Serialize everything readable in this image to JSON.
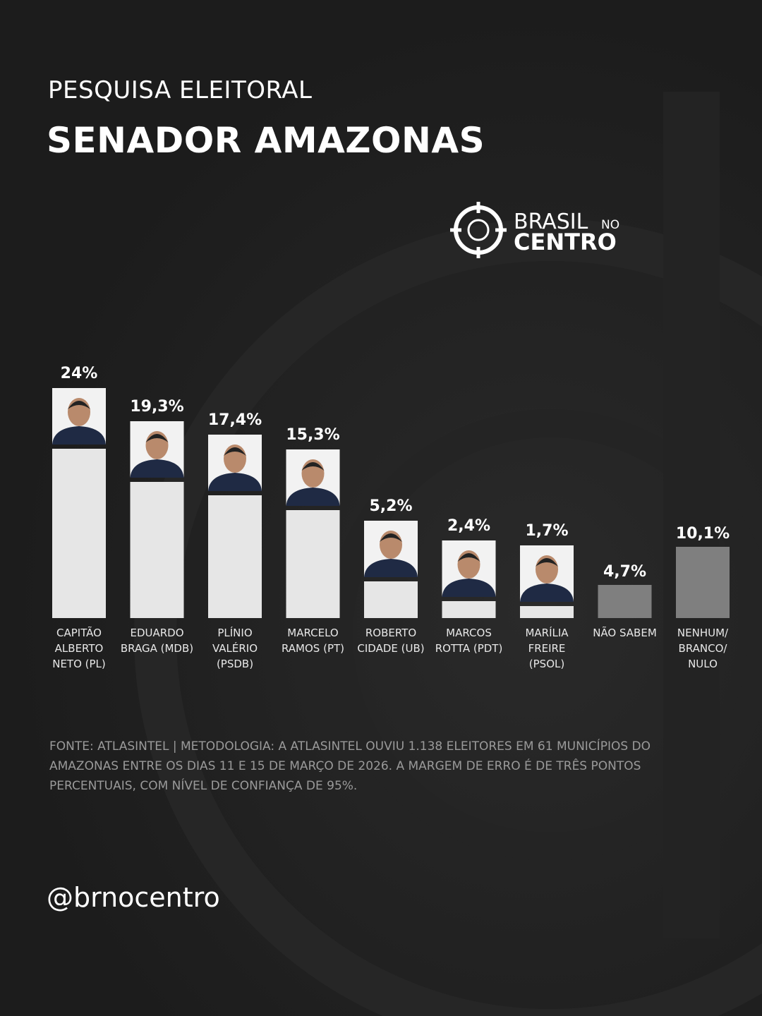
{
  "chart_data": {
    "type": "bar",
    "subtitle": "PESQUISA ELEITORAL",
    "title": "SENADOR AMAZONAS",
    "categories": [
      "CAPITÃO ALBERTO NETO (PL)",
      "EDUARDO BRAGA (MDB)",
      "PLÍNIO VALÉRIO (PSDB)",
      "MARCELO RAMOS (PT)",
      "ROBERTO CIDADE (UB)",
      "MARCOS ROTTA (PDT)",
      "MARÍLIA FREIRE (PSOL)",
      "NÃO SABEM",
      "NENHUM/ BRANCO/ NULO"
    ],
    "values": [
      24,
      19.3,
      17.4,
      15.3,
      5.2,
      2.4,
      1.7,
      4.7,
      10.1
    ],
    "value_labels": [
      "24%",
      "19,3%",
      "17,4%",
      "15,3%",
      "5,2%",
      "2,4%",
      "1,7%",
      "4,7%",
      "10,1%"
    ],
    "colors": [
      "#e6e6e6",
      "#e6e6e6",
      "#e6e6e6",
      "#e6e6e6",
      "#e6e6e6",
      "#e6e6e6",
      "#e6e6e6",
      "#7f7f7f",
      "#7f7f7f"
    ]
  },
  "logo": {
    "line1": "BRASIL",
    "small": "NO",
    "line2": "CENTRO"
  },
  "source": "FONTE: ATLASINTEL | METODOLOGIA: A ATLASINTEL OUVIU 1.138 ELEITORES EM 61 MUNICÍPIOS DO AMAZONAS ENTRE OS DIAS 11 E 15 DE MARÇO DE 2026. A MARGEM DE ERRO É DE TRÊS PONTOS PERCENTUAIS, COM NÍVEL DE CONFIANÇA DE 95%.",
  "handle": "@brnocentro"
}
